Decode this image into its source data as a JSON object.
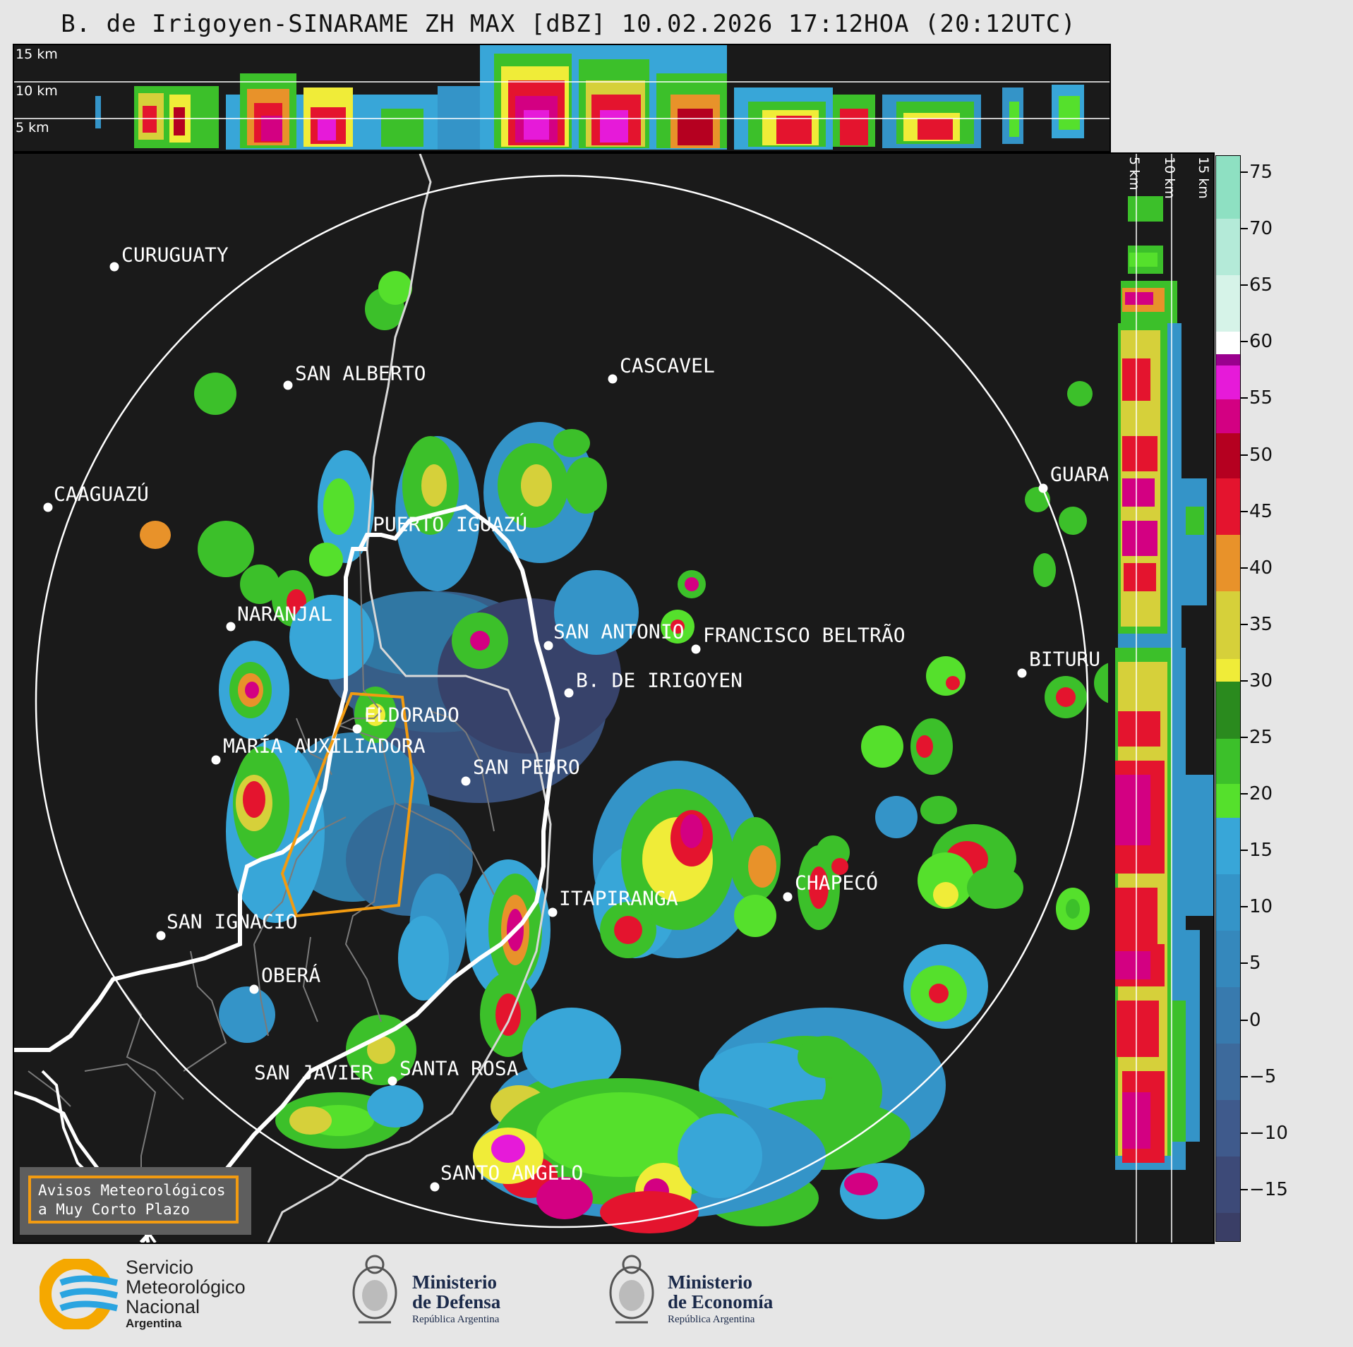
{
  "title": "B. de Irigoyen-SINARAME ZH MAX [dBZ] 10.02.2026 17:12HOA (20:12UTC)",
  "top_panel": {
    "alt_labels": [
      "15 km",
      "10 km",
      "5 km"
    ]
  },
  "side_panel": {
    "alt_labels": [
      "5 km",
      "10 km",
      "15 km"
    ]
  },
  "colorbar": {
    "unit": "dBZ",
    "tick_labels": [
      "75",
      "70",
      "65",
      "60",
      "55",
      "50",
      "45",
      "40",
      "35",
      "30",
      "25",
      "20",
      "15",
      "10",
      "5",
      "0",
      "−5",
      "−10",
      "−15"
    ],
    "range": [
      -19.5,
      76.5
    ],
    "bands": [
      {
        "from": -19.5,
        "to": -17,
        "color": "#3a3e66"
      },
      {
        "from": -17,
        "to": -12,
        "color": "#3d4a78"
      },
      {
        "from": -12,
        "to": -7,
        "color": "#3f5a8c"
      },
      {
        "from": -7,
        "to": -2,
        "color": "#3d6a9c"
      },
      {
        "from": -2,
        "to": 3,
        "color": "#387aae"
      },
      {
        "from": 3,
        "to": 8,
        "color": "#3588bc"
      },
      {
        "from": 8,
        "to": 13,
        "color": "#3494c8"
      },
      {
        "from": 13,
        "to": 18,
        "color": "#38a6d8"
      },
      {
        "from": 18,
        "to": 21,
        "color": "#55e02c"
      },
      {
        "from": 21,
        "to": 25,
        "color": "#3cc02a"
      },
      {
        "from": 25,
        "to": 30,
        "color": "#2a8a1e"
      },
      {
        "from": 30,
        "to": 32,
        "color": "#f0ec38"
      },
      {
        "from": 32,
        "to": 38,
        "color": "#d6d03a"
      },
      {
        "from": 38,
        "to": 43,
        "color": "#e8922a"
      },
      {
        "from": 43,
        "to": 48,
        "color": "#e4142e"
      },
      {
        "from": 48,
        "to": 52,
        "color": "#b50020"
      },
      {
        "from": 52,
        "to": 55,
        "color": "#d30082"
      },
      {
        "from": 55,
        "to": 58,
        "color": "#e61ad9"
      },
      {
        "from": 58,
        "to": 59,
        "color": "#9a008e"
      },
      {
        "from": 59,
        "to": 61,
        "color": "#ffffff"
      },
      {
        "from": 61,
        "to": 66,
        "color": "#d6f3e8"
      },
      {
        "from": 66,
        "to": 71,
        "color": "#b4ead8"
      },
      {
        "from": 71,
        "to": 76.5,
        "color": "#8ee0c2"
      }
    ]
  },
  "cities": [
    {
      "name": "CURUGUATY"
    },
    {
      "name": "SAN ALBERTO"
    },
    {
      "name": "CASCAVEL"
    },
    {
      "name": "CAAGUAZÚ"
    },
    {
      "name": "GUARA"
    },
    {
      "name": "PUERTO IGUAZÚ"
    },
    {
      "name": "NARANJAL"
    },
    {
      "name": "SAN ANTONIO"
    },
    {
      "name": "FRANCISCO BELTRÃO"
    },
    {
      "name": "BITURU"
    },
    {
      "name": "B. DE IRIGOYEN"
    },
    {
      "name": "ELDORADO"
    },
    {
      "name": "MARÍA AUXILIADORA"
    },
    {
      "name": "SAN PEDRO"
    },
    {
      "name": "CHAPECÓ"
    },
    {
      "name": "ITAPIRANGA"
    },
    {
      "name": "SAN IGNACIO"
    },
    {
      "name": "OBERÁ"
    },
    {
      "name": "SAN JAVIER"
    },
    {
      "name": "SANTA ROSA"
    },
    {
      "name": "SANTO ANGELO"
    }
  ],
  "legend": {
    "line1": "Avisos Meteorológicos",
    "line2": "a Muy Corto Plazo"
  },
  "logos": {
    "smn": {
      "line1": "Servicio",
      "line2": "Meteorológico",
      "line3": "Nacional",
      "line4": "Argentina"
    },
    "defensa": {
      "line1": "Ministerio",
      "line2": "de Defensa",
      "line3": "República Argentina"
    },
    "economia": {
      "line1": "Ministerio",
      "line2": "de Economía",
      "line3": "República Argentina"
    }
  },
  "colors": {
    "background": "#1a1a1a",
    "border_outline": "#ffffff",
    "alert_polygon": "#f29b11",
    "range_ring": "#ffffff",
    "districts": "#7a7a7a"
  }
}
